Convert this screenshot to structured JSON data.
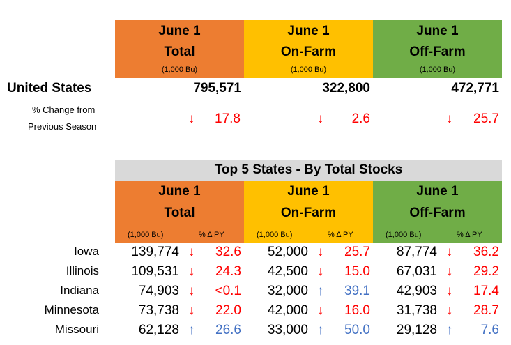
{
  "top_table": {
    "columns": [
      {
        "line1": "June 1",
        "line2": "Total",
        "unit": "(1,000 Bu)",
        "color": "#ED7D31"
      },
      {
        "line1": "June 1",
        "line2": "On-Farm",
        "unit": "(1,000 Bu)",
        "color": "#FFC000"
      },
      {
        "line1": "June 1",
        "line2": "Off-Farm",
        "unit": "(1,000 Bu)",
        "color": "#70AD47"
      }
    ],
    "us_label": "United States",
    "us_values": [
      "795,571",
      "322,800",
      "472,771"
    ],
    "change_label_1": "% Change from",
    "change_label_2": "Previous Season",
    "change_values": [
      {
        "arrow": "↓",
        "value": "17.8"
      },
      {
        "arrow": "↓",
        "value": "2.6"
      },
      {
        "arrow": "↓",
        "value": "25.7"
      }
    ]
  },
  "bottom_table": {
    "title": "Top 5 States - By Total Stocks",
    "columns": [
      {
        "line1": "June 1",
        "line2": "Total",
        "unit": "(1,000 Bu)",
        "pct": "% Δ PY"
      },
      {
        "line1": "June 1",
        "line2": "On-Farm",
        "unit": "(1,000 Bu)",
        "pct": "% Δ PY"
      },
      {
        "line1": "June 1",
        "line2": "Off-Farm",
        "unit": "(1,000 Bu)",
        "pct": "% Δ PY"
      }
    ],
    "rows": [
      {
        "state": "Iowa",
        "cells": [
          {
            "value": "139,774",
            "arrow": "↓",
            "pct": "32.6",
            "dir": "down"
          },
          {
            "value": "52,000",
            "arrow": "↓",
            "pct": "25.7",
            "dir": "down"
          },
          {
            "value": "87,774",
            "arrow": "↓",
            "pct": "36.2",
            "dir": "down"
          }
        ]
      },
      {
        "state": "Illinois",
        "cells": [
          {
            "value": "109,531",
            "arrow": "↓",
            "pct": "24.3",
            "dir": "down"
          },
          {
            "value": "42,500",
            "arrow": "↓",
            "pct": "15.0",
            "dir": "down"
          },
          {
            "value": "67,031",
            "arrow": "↓",
            "pct": "29.2",
            "dir": "down"
          }
        ]
      },
      {
        "state": "Indiana",
        "cells": [
          {
            "value": "74,903",
            "arrow": "↓",
            "pct": "<0.1",
            "dir": "down"
          },
          {
            "value": "32,000",
            "arrow": "↑",
            "pct": "39.1",
            "dir": "up"
          },
          {
            "value": "42,903",
            "arrow": "↓",
            "pct": "17.4",
            "dir": "down"
          }
        ]
      },
      {
        "state": "Minnesota",
        "cells": [
          {
            "value": "73,738",
            "arrow": "↓",
            "pct": "22.0",
            "dir": "down"
          },
          {
            "value": "42,000",
            "arrow": "↓",
            "pct": "16.0",
            "dir": "down"
          },
          {
            "value": "31,738",
            "arrow": "↓",
            "pct": "28.7",
            "dir": "down"
          }
        ]
      },
      {
        "state": "Missouri",
        "cells": [
          {
            "value": "62,128",
            "arrow": "↑",
            "pct": "26.6",
            "dir": "up"
          },
          {
            "value": "33,000",
            "arrow": "↑",
            "pct": "50.0",
            "dir": "up"
          },
          {
            "value": "29,128",
            "arrow": "↑",
            "pct": "7.6",
            "dir": "up"
          }
        ]
      }
    ]
  },
  "colors": {
    "down": "#FF0000",
    "up": "#4472C4",
    "title_bg": "#D9D9D9"
  }
}
